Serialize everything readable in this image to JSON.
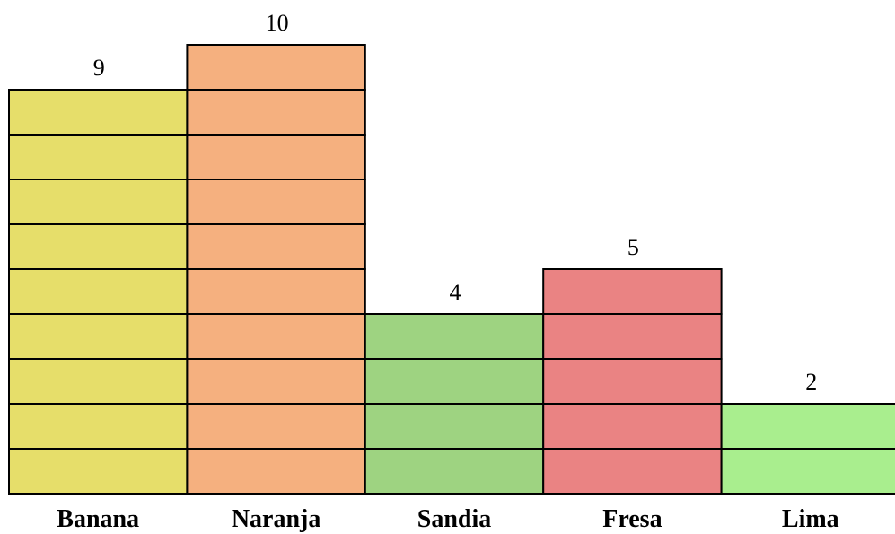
{
  "chart_data": {
    "type": "bar",
    "title": "",
    "xlabel": "",
    "ylabel": "",
    "ylim": [
      0,
      10
    ],
    "grid": false,
    "legend": "none",
    "categories": [
      "Banana",
      "Naranja",
      "Sandia",
      "Fresa",
      "Lima"
    ],
    "values": [
      9,
      10,
      4,
      5,
      2
    ],
    "colors": [
      "#e6de6a",
      "#f5b07f",
      "#9ed381",
      "#ea8383",
      "#a9ee8e"
    ],
    "stroke_color": "#000000",
    "bar_style": "stacked unit blocks"
  }
}
